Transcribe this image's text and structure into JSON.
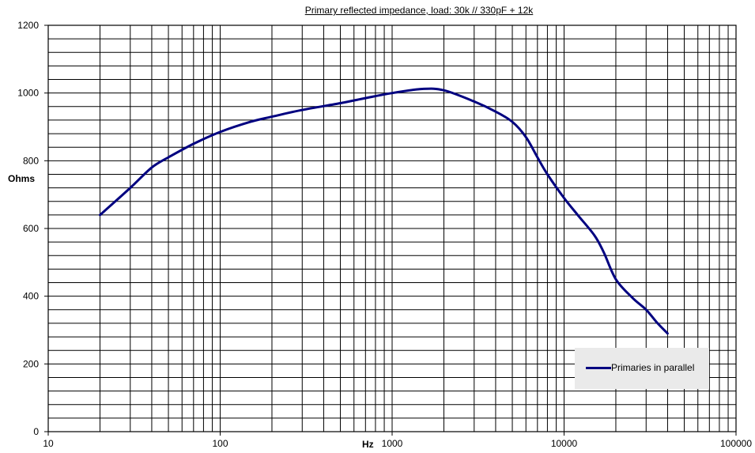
{
  "chart_data": {
    "type": "line",
    "title": "Primary reflected impedance, load: 30k  // 330pF + 12k",
    "xlabel": "Hz",
    "ylabel": "Ohms",
    "x_scale": "log",
    "xlim": [
      10,
      100000
    ],
    "ylim": [
      0,
      1200
    ],
    "x_ticks": [
      "10",
      "100",
      "1000",
      "10000",
      "100000"
    ],
    "y_ticks": [
      "0",
      "200",
      "400",
      "600",
      "800",
      "1000",
      "1200"
    ],
    "grid": true,
    "legend_position": "bottom-right",
    "series": [
      {
        "name": "Primaries in parallel",
        "color": "#000080",
        "x": [
          20,
          30,
          40,
          50,
          70,
          100,
          150,
          200,
          300,
          500,
          700,
          1000,
          1500,
          2000,
          3000,
          4000,
          5000,
          6000,
          7000,
          8000,
          10000,
          12000,
          15000,
          17000,
          20000,
          25000,
          30000,
          35000,
          40000
        ],
        "y": [
          640,
          720,
          780,
          810,
          850,
          885,
          915,
          930,
          950,
          970,
          985,
          1000,
          1012,
          1008,
          975,
          945,
          915,
          870,
          810,
          760,
          690,
          640,
          580,
          530,
          450,
          395,
          360,
          320,
          290
        ]
      }
    ]
  }
}
